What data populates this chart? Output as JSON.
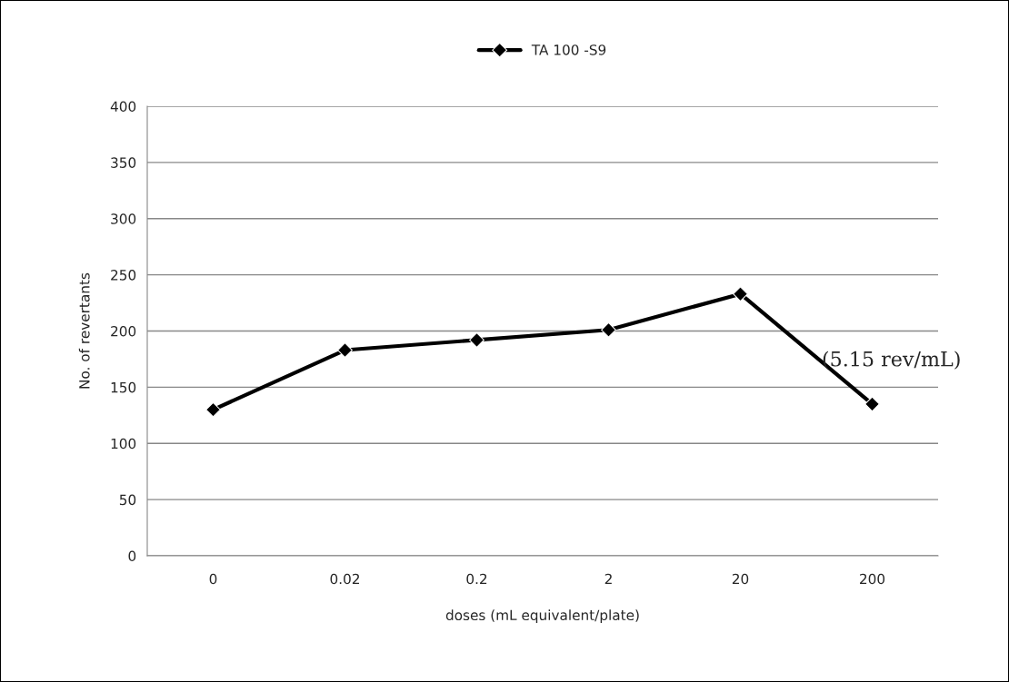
{
  "chart_data": {
    "type": "line",
    "categories": [
      "0",
      "0.02",
      "0.2",
      "2",
      "20",
      "200"
    ],
    "series": [
      {
        "name": "TA 100 -S9",
        "color": "#000000",
        "values": [
          130,
          183,
          192,
          201,
          233,
          135
        ]
      }
    ],
    "xlabel": "doses (mL equivalent/plate)",
    "ylabel": "No. of revertants",
    "ylim": [
      0,
      400
    ],
    "yticks": [
      0,
      50,
      100,
      150,
      200,
      250,
      300,
      350,
      400
    ],
    "grid": "y",
    "legend": "top",
    "marker": "diamond",
    "line_style": "solid",
    "annotations": [
      "(5.15 rev/mL)"
    ]
  }
}
